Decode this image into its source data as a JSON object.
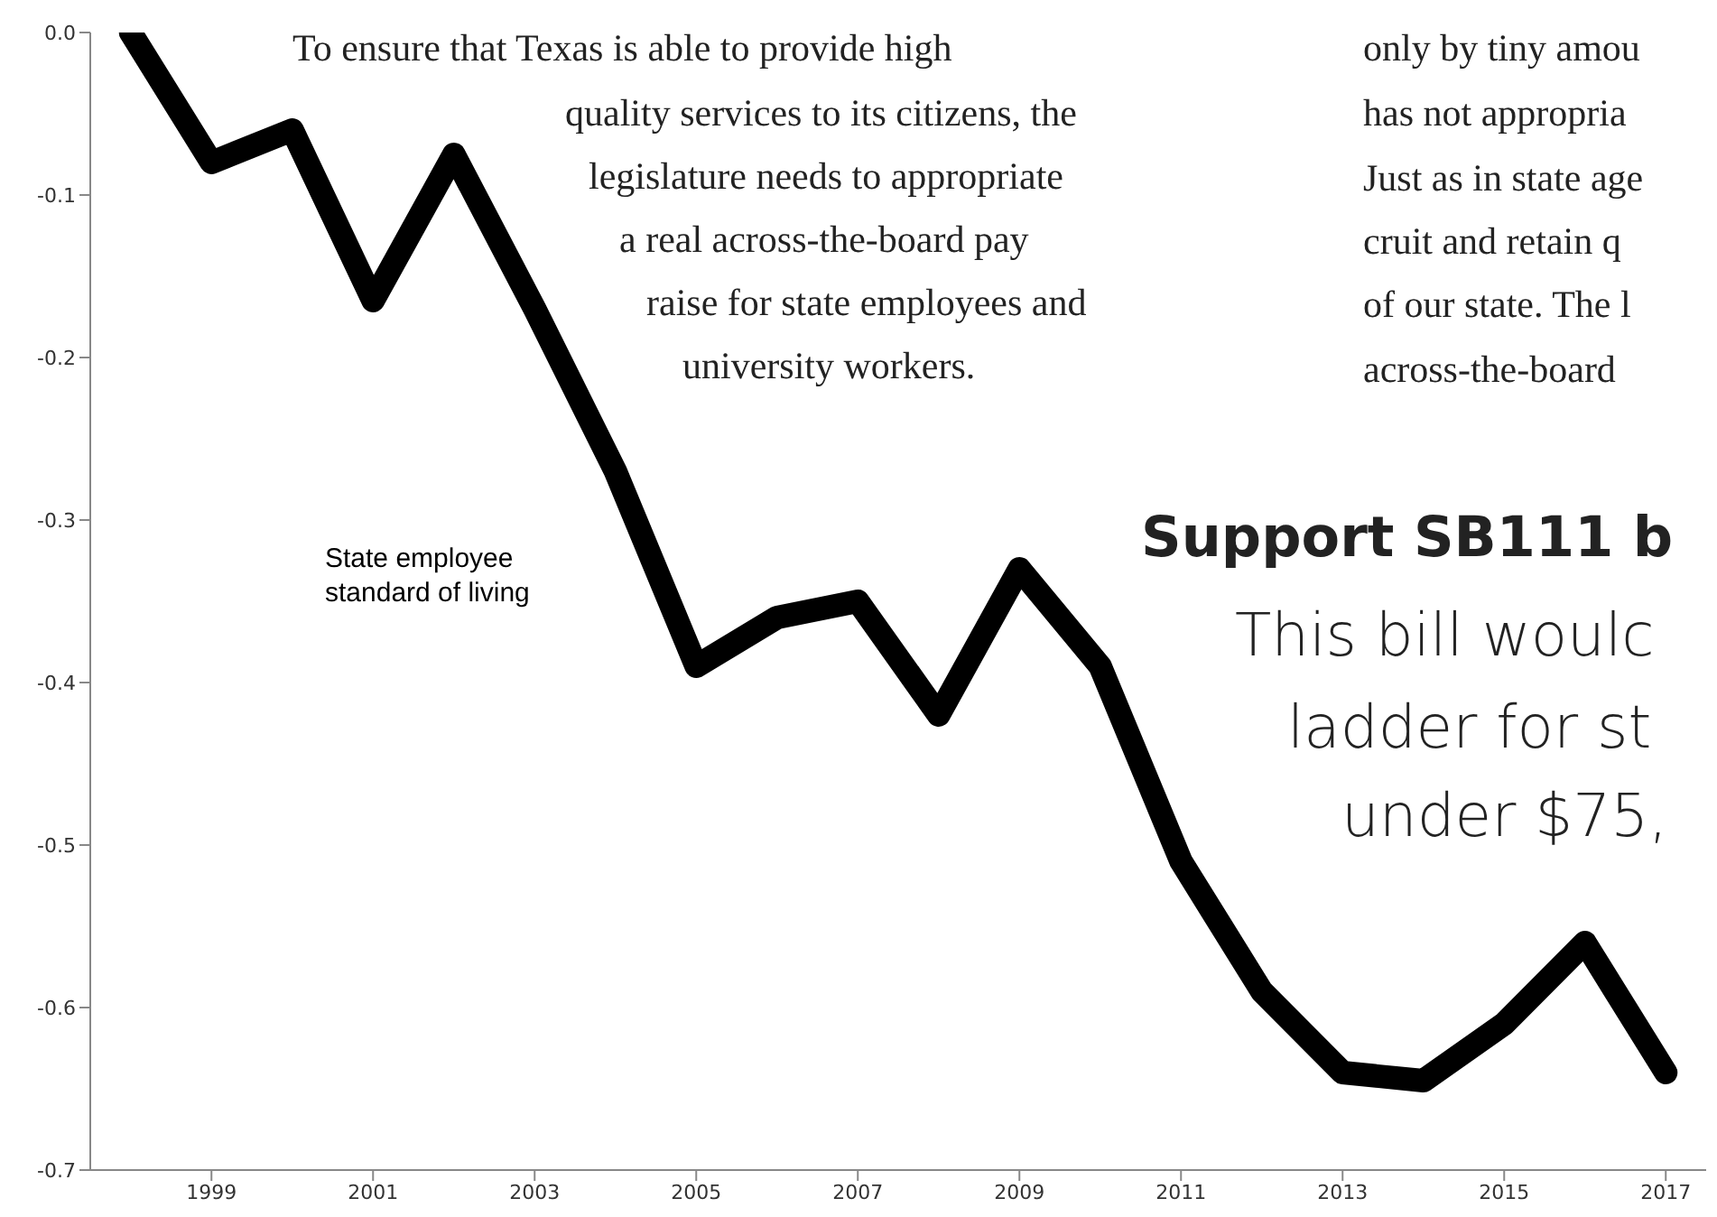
{
  "chart_data": {
    "type": "line",
    "categories": [
      null,
      "1999",
      null,
      "2001",
      null,
      "2003",
      null,
      "2005",
      null,
      "2007",
      null,
      "2009",
      null,
      "2011",
      null,
      "2013",
      null,
      "2015",
      null,
      "2017"
    ],
    "series": [
      {
        "name": "State employee standard of living",
        "color": "#000000",
        "values": [
          0.0,
          -0.08,
          -0.06,
          -0.165,
          -0.075,
          -0.17,
          -0.27,
          -0.39,
          -0.36,
          -0.35,
          -0.42,
          -0.33,
          -0.39,
          -0.51,
          -0.59,
          -0.64,
          -0.645,
          -0.61,
          -0.56,
          -0.64
        ]
      }
    ],
    "ylim": [
      -0.7,
      0.0
    ],
    "yticks": [
      {
        "value": 0,
        "label": "0.0"
      },
      -0.1,
      -0.2,
      -0.3,
      -0.4,
      -0.5,
      -0.6,
      -0.7
    ],
    "grid": false,
    "legend": false,
    "marker": "none",
    "line_style": "solid",
    "annotations": [
      "To ensure that Texas is able to provide high",
      "quality services to its citizens, the",
      "legislature needs to appropriate",
      "a real across-the-board pay",
      "raise for state employees and",
      "university workers.",
      "only by tiny amou",
      "has not appropria",
      "Just as in state age",
      "cruit and retain q",
      "of our state. The l",
      "across-the-board",
      "Support SB111 b",
      "This bill woulc",
      "ladder for st",
      "under $75,"
    ]
  }
}
